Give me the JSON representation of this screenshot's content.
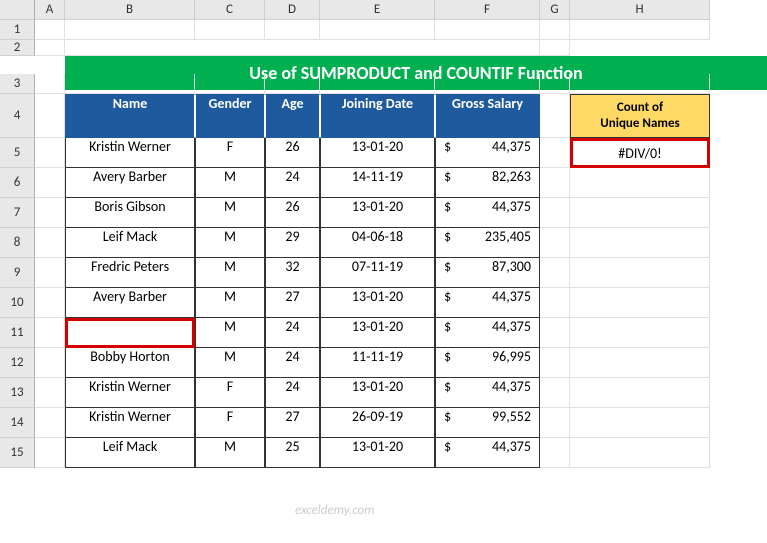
{
  "columns": [
    "",
    "A",
    "B",
    "C",
    "D",
    "E",
    "F",
    "G",
    "H"
  ],
  "row_numbers": [
    "1",
    "2",
    "3",
    "4",
    "5",
    "6",
    "7",
    "8",
    "9",
    "10",
    "11",
    "12",
    "13",
    "14",
    "15"
  ],
  "title": "Use of SUMPRODUCT and COUNTIF Function",
  "headers": {
    "name": "Name",
    "gender": "Gender",
    "age": "Age",
    "joining": "Joining Date",
    "salary": "Gross Salary"
  },
  "sidebar": {
    "header_line1": "Count of",
    "header_line2": "Unique Names",
    "value": "#DIV/0!"
  },
  "rows": [
    {
      "name": "Kristin Werner",
      "gender": "F",
      "age": "26",
      "joining": "13-01-20",
      "salary": "44,375"
    },
    {
      "name": "Avery Barber",
      "gender": "M",
      "age": "24",
      "joining": "14-11-19",
      "salary": "82,263"
    },
    {
      "name": "Boris Gibson",
      "gender": "M",
      "age": "26",
      "joining": "13-01-20",
      "salary": "44,375"
    },
    {
      "name": "Leif Mack",
      "gender": "M",
      "age": "29",
      "joining": "04-06-18",
      "salary": "235,405"
    },
    {
      "name": "Fredric Peters",
      "gender": "M",
      "age": "32",
      "joining": "07-11-19",
      "salary": "87,300"
    },
    {
      "name": "Avery Barber",
      "gender": "M",
      "age": "27",
      "joining": "13-01-20",
      "salary": "44,375"
    },
    {
      "name": "",
      "gender": "M",
      "age": "24",
      "joining": "13-01-20",
      "salary": "44,375",
      "highlight": true
    },
    {
      "name": "Bobby Horton",
      "gender": "M",
      "age": "24",
      "joining": "11-11-19",
      "salary": "96,995"
    },
    {
      "name": "Kristin Werner",
      "gender": "F",
      "age": "24",
      "joining": "13-01-20",
      "salary": "44,375"
    },
    {
      "name": "Kristin Werner",
      "gender": "F",
      "age": "27",
      "joining": "26-09-19",
      "salary": "99,552"
    },
    {
      "name": "Leif Mack",
      "gender": "M",
      "age": "25",
      "joining": "13-01-20",
      "salary": "44,375"
    }
  ],
  "watermark": "exceldemy.com",
  "colors": {
    "banner_bg": "#00b050",
    "header_bg": "#1f5a9e",
    "sidebar_bg": "#ffd966",
    "highlight": "#d40000"
  }
}
